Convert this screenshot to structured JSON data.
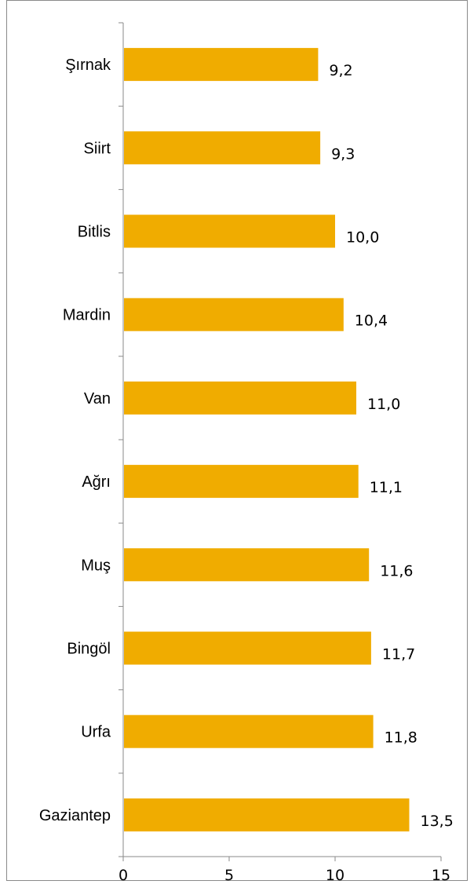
{
  "chart_data": {
    "type": "bar",
    "orientation": "horizontal",
    "categories": [
      "Şırnak",
      "Siirt",
      "Bitlis",
      "Mardin",
      "Van",
      "Ağrı",
      "Muş",
      "Bingöl",
      "Urfa",
      "Gaziantep"
    ],
    "values": [
      9.2,
      9.3,
      10.0,
      10.4,
      11.0,
      11.1,
      11.6,
      11.7,
      11.8,
      13.5
    ],
    "value_labels": [
      "9,2",
      "9,3",
      "10,0",
      "10,4",
      "11,0",
      "11,1",
      "11,6",
      "11,7",
      "11,8",
      "13,5"
    ],
    "title": "",
    "xlabel": "",
    "ylabel": "",
    "xlim": [
      0,
      15
    ],
    "x_ticks": [
      0,
      5,
      10,
      15
    ],
    "x_tick_labels": [
      "0",
      "5",
      "10",
      "15"
    ],
    "grid": false,
    "legend": "none",
    "bar_color": "#F0AC00",
    "axis_color": "#8a8a8a"
  }
}
